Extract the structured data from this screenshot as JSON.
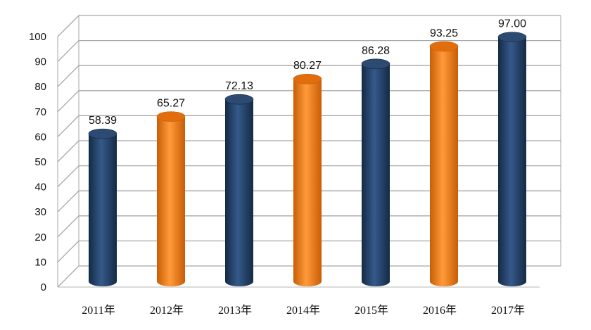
{
  "chart_data": {
    "type": "bar",
    "title": "",
    "xlabel": "",
    "ylabel": "",
    "ylim": [
      0,
      100
    ],
    "yticks": [
      0,
      10,
      20,
      30,
      40,
      50,
      60,
      70,
      80,
      90,
      100
    ],
    "categories": [
      "2011年",
      "2012年",
      "2013年",
      "2014年",
      "2015年",
      "2016年",
      "2017年"
    ],
    "values": [
      58.39,
      65.27,
      72.13,
      80.27,
      86.28,
      93.25,
      97.0
    ],
    "value_labels": [
      "58.39",
      "65.27",
      "72.13",
      "80.27",
      "86.28",
      "93.25",
      "97.00"
    ],
    "grid": true,
    "style": "3d-cylinder",
    "colors": {
      "navy": "#1f3b5e",
      "orange": "#ef7a12",
      "bar_pattern": [
        "navy",
        "orange",
        "navy",
        "orange",
        "navy",
        "orange",
        "navy"
      ],
      "gridline": "#a6a6a6",
      "frame": "#b5b5b5"
    }
  }
}
